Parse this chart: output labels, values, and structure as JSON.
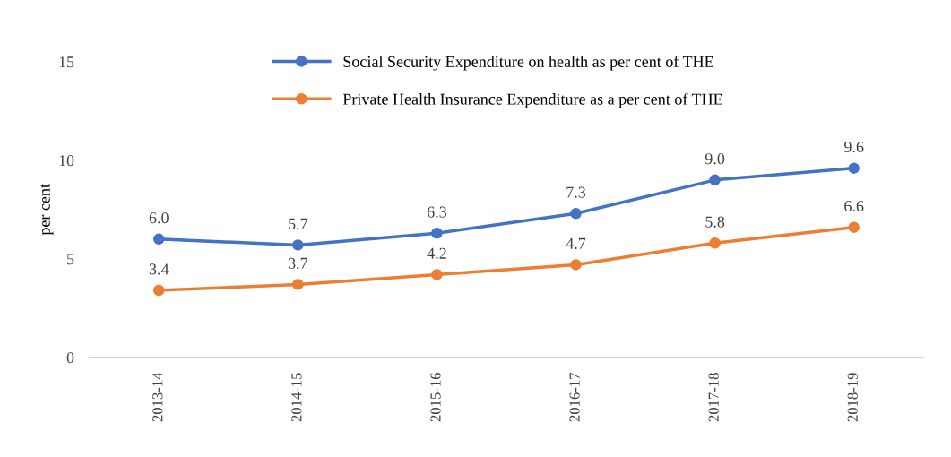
{
  "chart_data": {
    "type": "line",
    "ylabel": "per cent",
    "categories": [
      "2013-14",
      "2014-15",
      "2015-16",
      "2016-17",
      "2017-18",
      "2018-19"
    ],
    "series": [
      {
        "name": "Social Security Expenditure on health as per cent of THE",
        "color": "#4472c4",
        "values": [
          6.0,
          5.7,
          6.3,
          7.3,
          9.0,
          9.6
        ],
        "value_labels": [
          "6.0",
          "5.7",
          "6.3",
          "7.3",
          "9.0",
          "9.6"
        ]
      },
      {
        "name": "Private Health Insurance Expenditure as a per cent of THE",
        "color": "#ed7d31",
        "values": [
          3.4,
          3.7,
          4.2,
          4.7,
          5.8,
          6.6
        ],
        "value_labels": [
          "3.4",
          "3.7",
          "4.2",
          "4.7",
          "5.8",
          "6.6"
        ]
      }
    ],
    "ylim": [
      0,
      15
    ],
    "yticks": [
      0,
      5,
      10,
      15
    ],
    "grid": false,
    "legend": "top",
    "marker": "circle",
    "line_style": "solid"
  }
}
